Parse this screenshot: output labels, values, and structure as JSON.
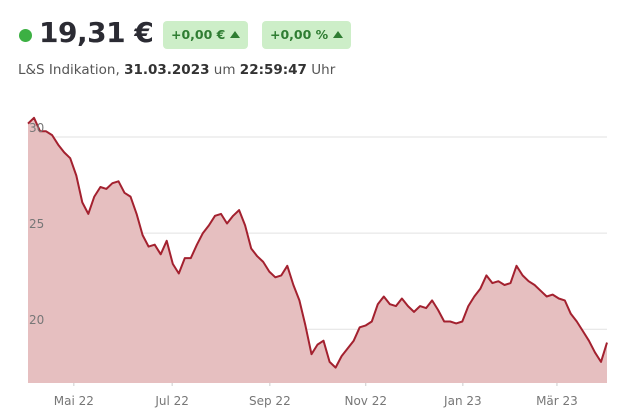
{
  "header": {
    "price": "19,31 €",
    "change_abs": "+0,00 €",
    "change_pct": "+0,00 %",
    "source": "L&S Indikation,",
    "date": "31.03.2023",
    "at": "um",
    "time": "22:59:47",
    "unit": "Uhr"
  },
  "chart_data": {
    "type": "area",
    "color": "#a3212f",
    "fill": "#e6bfc0",
    "grid": true,
    "values": [
      30.7,
      31.0,
      30.3,
      30.3,
      30.1,
      29.6,
      29.2,
      28.9,
      28.0,
      26.6,
      26.0,
      26.9,
      27.4,
      27.3,
      27.6,
      27.7,
      27.1,
      26.9,
      26.0,
      24.9,
      24.3,
      24.4,
      23.9,
      24.6,
      23.4,
      22.9,
      23.7,
      23.7,
      24.4,
      25.0,
      25.4,
      25.9,
      26.0,
      25.5,
      25.9,
      26.2,
      25.4,
      24.2,
      23.8,
      23.5,
      23.0,
      22.7,
      22.8,
      23.3,
      22.3,
      21.5,
      20.2,
      18.7,
      19.2,
      19.4,
      18.3,
      18.0,
      18.6,
      19.0,
      19.4,
      20.1,
      20.2,
      20.4,
      21.3,
      21.7,
      21.3,
      21.2,
      21.6,
      21.2,
      20.9,
      21.2,
      21.1,
      21.5,
      21.0,
      20.4,
      20.4,
      20.3,
      20.4,
      21.2,
      21.7,
      22.1,
      22.8,
      22.4,
      22.5,
      22.3,
      22.4,
      23.3,
      22.8,
      22.5,
      22.3,
      22.0,
      21.7,
      21.8,
      21.6,
      21.5,
      20.8,
      20.4,
      19.9,
      19.4,
      18.8,
      18.3,
      19.3
    ],
    "ylim": [
      17.2,
      31.2
    ],
    "yticks": [
      20,
      25,
      30
    ],
    "xticks": [
      {
        "value": 7.6,
        "label": "Mai 22"
      },
      {
        "value": 23.9,
        "label": "Jul 22"
      },
      {
        "value": 40.1,
        "label": "Sep 22"
      },
      {
        "value": 56.0,
        "label": "Nov 22"
      },
      {
        "value": 72.1,
        "label": "Jan 23"
      },
      {
        "value": 87.7,
        "label": "Mär 23"
      }
    ]
  }
}
